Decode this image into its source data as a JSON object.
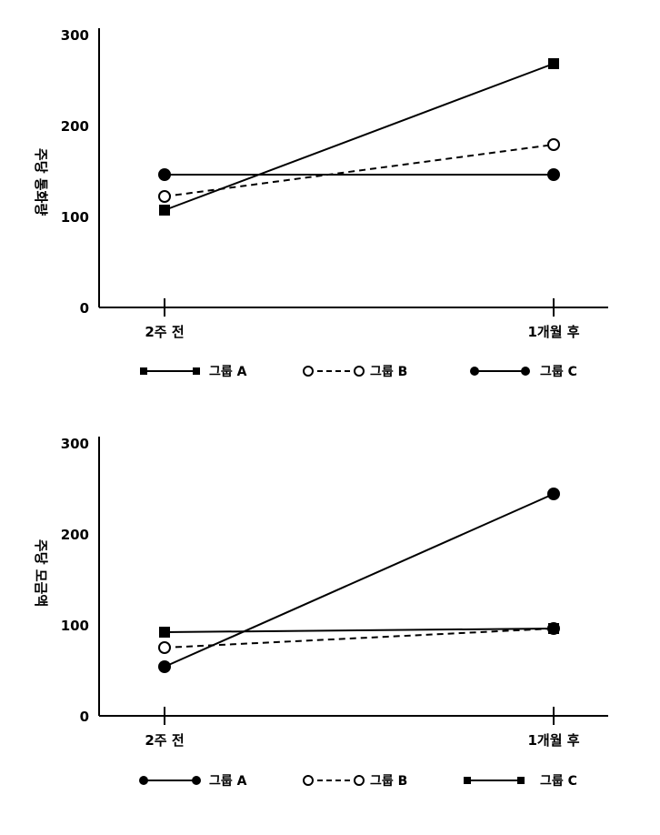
{
  "chart_data": [
    {
      "type": "line",
      "ylabel": "주당 통화량",
      "ylim": [
        0,
        300
      ],
      "yticks": [
        "0",
        "100",
        "200",
        "300"
      ],
      "categories": [
        "2주 전",
        "1개월 후"
      ],
      "series": [
        {
          "name": "그룹 A",
          "marker": "square",
          "style": "solid",
          "values": [
            107,
            268
          ]
        },
        {
          "name": "그룹 B",
          "marker": "circle-open",
          "style": "dashed",
          "values": [
            122,
            179
          ]
        },
        {
          "name": "그룹 C",
          "marker": "circle",
          "style": "solid",
          "values": [
            146,
            146
          ]
        }
      ]
    },
    {
      "type": "line",
      "ylabel": "주당 모금액",
      "ylim": [
        0,
        300
      ],
      "yticks": [
        "0",
        "100",
        "200",
        "300"
      ],
      "categories": [
        "2주 전",
        "1개월 후"
      ],
      "series": [
        {
          "name": "그룹 A",
          "marker": "circle",
          "style": "solid",
          "values": [
            54,
            244
          ]
        },
        {
          "name": "그룹 B",
          "marker": "circle-open",
          "style": "dashed",
          "values": [
            75,
            96
          ]
        },
        {
          "name": "그룹 C",
          "marker": "square",
          "style": "solid",
          "values": [
            92,
            96
          ]
        }
      ]
    }
  ]
}
